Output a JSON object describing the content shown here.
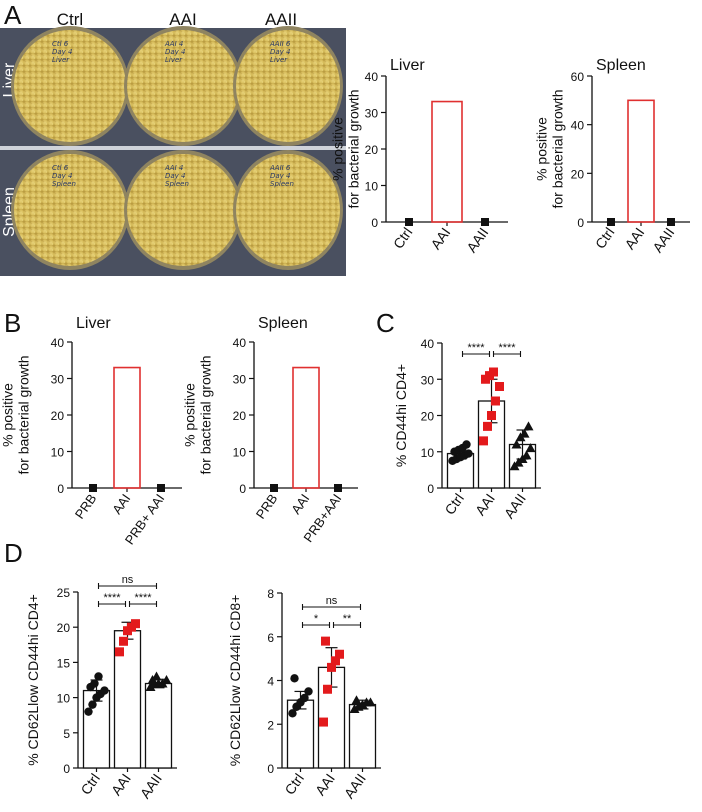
{
  "figure": {
    "panels": [
      "A",
      "B",
      "C",
      "D"
    ],
    "photo": {
      "col_labels": [
        "Ctrl",
        "AAI",
        "AAII"
      ],
      "row_labels": [
        "Liver",
        "Spleen"
      ],
      "plate_notes": [
        [
          "Ctl 6\nDay 4\nLiver",
          "AAI 4\nDay 4\nLiver",
          "AAII 6\nDay 4\nLiver"
        ],
        [
          "Ctl 6\nDay 4\nSpleen",
          "AAI 4\nDay 4\nSpleen",
          "AAII 6\nDay 4\nSpleen"
        ]
      ]
    }
  },
  "chart_data": [
    {
      "panel": "A",
      "type": "bar",
      "title": "Liver",
      "ylabel": "% positive\nfor bacterial growth",
      "categories": [
        "Ctrl",
        "AAI",
        "AAII"
      ],
      "values": [
        0,
        33,
        0
      ],
      "ylim": [
        0,
        40
      ],
      "yticks": [
        0,
        10,
        20,
        30,
        40
      ],
      "bar_color": "#e03030"
    },
    {
      "panel": "A",
      "type": "bar",
      "title": "Spleen",
      "ylabel": "% positive\nfor bacterial growth",
      "categories": [
        "Ctrl",
        "AAI",
        "AAII"
      ],
      "values": [
        0,
        50,
        0
      ],
      "ylim": [
        0,
        60
      ],
      "yticks": [
        0,
        20,
        40,
        60
      ],
      "bar_color": "#e03030"
    },
    {
      "panel": "B",
      "type": "bar",
      "title": "Liver",
      "ylabel": "% positive\nfor bacterial growth",
      "categories": [
        "PRB",
        "AAI",
        "PRB+ AAI"
      ],
      "values": [
        0,
        33,
        0
      ],
      "ylim": [
        0,
        40
      ],
      "yticks": [
        0,
        10,
        20,
        30,
        40
      ],
      "bar_color": "#e03030"
    },
    {
      "panel": "B",
      "type": "bar",
      "title": "Spleen",
      "ylabel": "% positive\nfor bacterial growth",
      "categories": [
        "PRB",
        "AAI",
        "PRB+AAI"
      ],
      "values": [
        0,
        33,
        0
      ],
      "ylim": [
        0,
        40
      ],
      "yticks": [
        0,
        10,
        20,
        30,
        40
      ],
      "bar_color": "#e03030"
    },
    {
      "panel": "C",
      "type": "bar",
      "ylabel": "% CD44hi CD4+",
      "categories": [
        "Ctrl",
        "AAI",
        "AAII"
      ],
      "values": [
        9.5,
        24,
        12
      ],
      "errors": [
        1.5,
        6,
        4
      ],
      "ylim": [
        0,
        40
      ],
      "yticks": [
        0,
        10,
        20,
        30,
        40
      ],
      "points": [
        [
          7.5,
          8,
          8.5,
          9,
          9.5,
          10,
          10.5,
          11,
          12
        ],
        [
          13,
          17,
          20,
          24,
          28,
          30,
          31,
          32
        ],
        [
          6,
          7,
          8,
          9,
          11,
          12,
          14,
          15,
          17
        ]
      ],
      "markers": [
        "circle",
        "square",
        "triangle"
      ],
      "marker_colors": [
        "#111111",
        "#e31a1c",
        "#111111"
      ],
      "significance": [
        {
          "pair": [
            0,
            1
          ],
          "label": "****"
        },
        {
          "pair": [
            1,
            2
          ],
          "label": "****"
        }
      ]
    },
    {
      "panel": "D",
      "type": "bar",
      "ylabel": "% CD62Llow CD44hi CD4+",
      "categories": [
        "Ctrl",
        "AAI",
        "AAII"
      ],
      "values": [
        11,
        19.5,
        12
      ],
      "errors": [
        1.5,
        1.2,
        0.6
      ],
      "ylim": [
        0,
        25
      ],
      "yticks": [
        0,
        5,
        10,
        15,
        20,
        25
      ],
      "points": [
        [
          8,
          9,
          10,
          10.5,
          11,
          11.5,
          12,
          13
        ],
        [
          16.5,
          18,
          19.5,
          20,
          20.5
        ],
        [
          11.5,
          12,
          12,
          12,
          12.5,
          12.5,
          13
        ]
      ],
      "markers": [
        "circle",
        "square",
        "triangle"
      ],
      "marker_colors": [
        "#111111",
        "#e31a1c",
        "#111111"
      ],
      "significance": [
        {
          "pair": [
            0,
            2
          ],
          "label": "ns",
          "level": 2
        },
        {
          "pair": [
            0,
            1
          ],
          "label": "****",
          "level": 1
        },
        {
          "pair": [
            1,
            2
          ],
          "label": "****",
          "level": 1
        }
      ]
    },
    {
      "panel": "D",
      "type": "bar",
      "ylabel": "% CD62Llow CD44hi CD8+",
      "categories": [
        "Ctrl",
        "AAI",
        "AAII"
      ],
      "values": [
        3.1,
        4.6,
        2.9
      ],
      "errors": [
        0.4,
        0.9,
        0.2
      ],
      "ylim": [
        0,
        8
      ],
      "yticks": [
        0,
        2,
        4,
        6,
        8
      ],
      "points": [
        [
          2.5,
          2.8,
          3,
          3.2,
          3.5,
          4.1
        ],
        [
          2.1,
          3.6,
          4.6,
          4.9,
          5.2,
          5.8
        ],
        [
          2.7,
          2.8,
          2.9,
          3,
          3,
          3.1
        ]
      ],
      "markers": [
        "circle",
        "square",
        "triangle"
      ],
      "marker_colors": [
        "#111111",
        "#e31a1c",
        "#111111"
      ],
      "significance": [
        {
          "pair": [
            0,
            2
          ],
          "label": "ns",
          "level": 2
        },
        {
          "pair": [
            0,
            1
          ],
          "label": "*",
          "level": 1
        },
        {
          "pair": [
            1,
            2
          ],
          "label": "**",
          "level": 1
        }
      ]
    }
  ]
}
